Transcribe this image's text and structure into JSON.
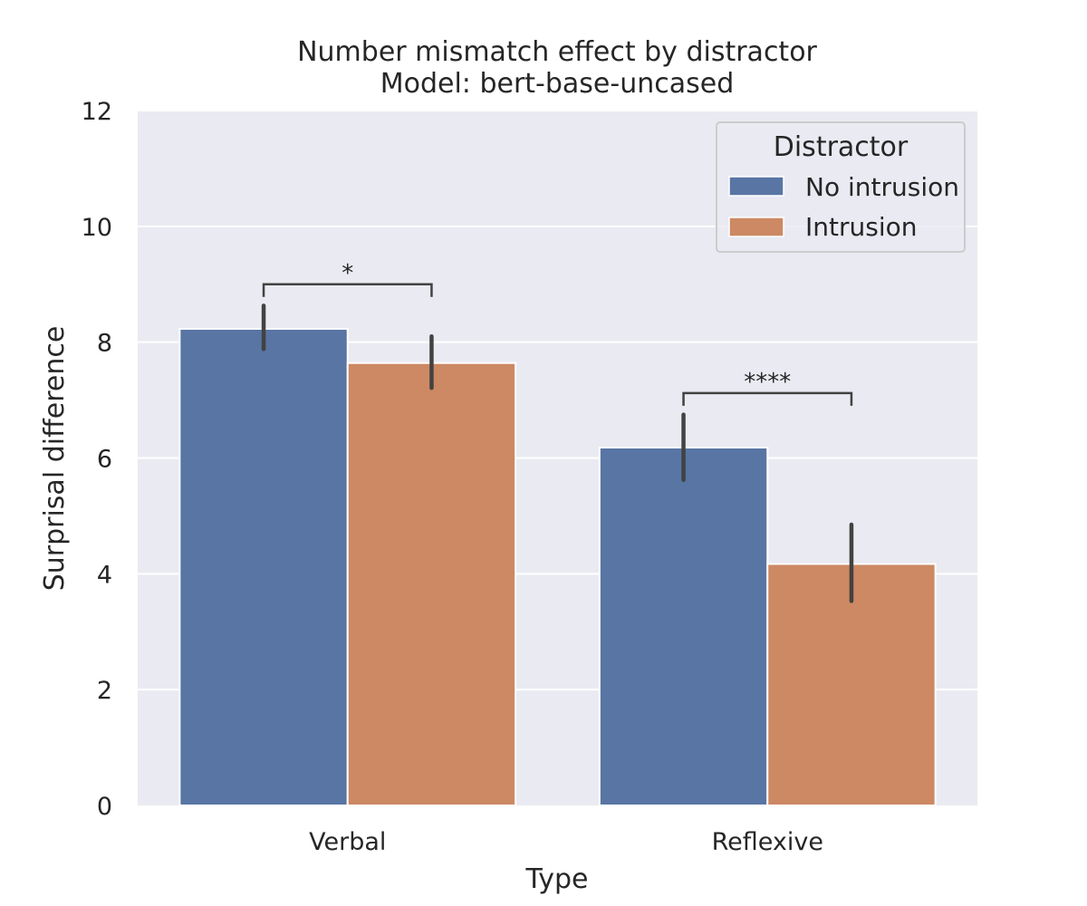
{
  "chart_data": {
    "type": "bar",
    "title": "Number mismatch effect by distractor",
    "subtitle": "Model: bert-base-uncased",
    "xlabel": "Type",
    "ylabel": "Surprisal difference",
    "ylim": [
      0,
      12
    ],
    "yticks": [
      0,
      2,
      4,
      6,
      8,
      10,
      12
    ],
    "grid": true,
    "categories": [
      "Verbal",
      "Reflexive"
    ],
    "series": [
      {
        "name": "No intrusion",
        "color": "#5875a4",
        "values": [
          8.23,
          6.18
        ],
        "ci_low": [
          7.88,
          5.62
        ],
        "ci_high": [
          8.63,
          6.75
        ]
      },
      {
        "name": "Intrusion",
        "color": "#cc8963",
        "values": [
          7.64,
          4.17
        ],
        "ci_low": [
          7.21,
          3.53
        ],
        "ci_high": [
          8.1,
          4.85
        ]
      }
    ],
    "legend": {
      "title": "Distractor",
      "placement": "top-right"
    },
    "significance": [
      {
        "category": "Verbal",
        "label": "*",
        "y": 9.0
      },
      {
        "category": "Reflexive",
        "label": "****",
        "y": 7.12
      }
    ]
  }
}
